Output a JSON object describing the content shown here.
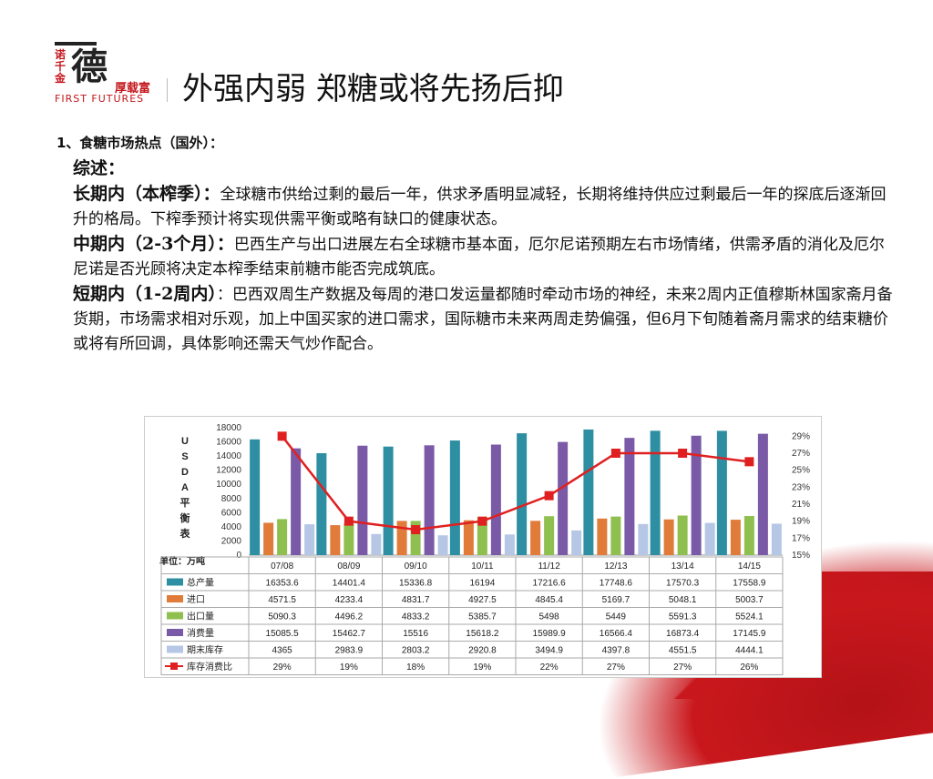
{
  "logo": {
    "side_text": "诺千金",
    "main_char": "德",
    "sub_text": "厚载富",
    "english": "FIRST FUTURES"
  },
  "title": "外强内弱 郑糖或将先扬后抑",
  "subtitle": "1、食糖市场热点（国外）：",
  "body": {
    "summary_label": "综述：",
    "long_label": "长期内（本榨季）：",
    "long_text": "全球糖市供给过剩的最后一年，供求矛盾明显减轻，长期将维持供应过剩最后一年的探底后逐渐回升的格局。下榨季预计将实现供需平衡或略有缺口的健康状态。",
    "mid_label": "中期内（2-3个月）：",
    "mid_text": "巴西生产与出口进展左右全球糖市基本面，厄尔尼诺预期左右市场情绪，供需矛盾的消化及厄尔尼诺是否光顾将决定本榨季结束前糖市能否完成筑底。",
    "short_label": "短期内（1-2周内）",
    "short_text": "：巴西双周生产数据及每周的港口发运量都随时牵动市场的神经，未来2周内正值穆斯林国家斋月备货期，市场需求相对乐观，加上中国买家的进口需求，国际糖市未来两周走势偏强，但6月下旬随着斋月需求的结束糖价或将有所回调，具体影响还需天气炒作配合。"
  },
  "chart_data": {
    "type": "bar",
    "ylabel_vertical": "USDA平衡表",
    "unit": "单位：万吨",
    "categories": [
      "07/08",
      "08/09",
      "09/10",
      "10/11",
      "11/12",
      "12/13",
      "13/14",
      "14/15"
    ],
    "ylim": [
      0,
      18000
    ],
    "yticks": [
      0,
      2000,
      4000,
      6000,
      8000,
      10000,
      12000,
      14000,
      16000,
      18000
    ],
    "y2lim": [
      15,
      30
    ],
    "y2ticks": [
      "15%",
      "17%",
      "19%",
      "21%",
      "23%",
      "25%",
      "27%",
      "29%"
    ],
    "series": [
      {
        "name": "总产量",
        "color": "#2e8fa3",
        "values": [
          16353.6,
          14401.4,
          15336.8,
          16194,
          17216.6,
          17748.6,
          17570.3,
          17558.9
        ],
        "labels": [
          "16353.6",
          "14401.4",
          "15336.8",
          "16194",
          "17216.6",
          "17748.6",
          "17570.3",
          "17558.9"
        ]
      },
      {
        "name": "进口",
        "color": "#e07b3a",
        "values": [
          4571.5,
          4233.4,
          4831.7,
          4927.5,
          4845.4,
          5169.7,
          5048.1,
          5003.7
        ],
        "labels": [
          "4571.5",
          "4233.4",
          "4831.7",
          "4927.5",
          "4845.4",
          "5169.7",
          "5048.1",
          "5003.7"
        ]
      },
      {
        "name": "出口量",
        "color": "#8fc04f",
        "values": [
          5090.3,
          4496.2,
          4833.2,
          5385.7,
          5498,
          5449,
          5591.3,
          5524.1
        ],
        "labels": [
          "5090.3",
          "4496.2",
          "4833.2",
          "5385.7",
          "5498",
          "5449",
          "5591.3",
          "5524.1"
        ]
      },
      {
        "name": "消费量",
        "color": "#7a5aa6",
        "values": [
          15085.5,
          15462.7,
          15516,
          15618.2,
          15989.9,
          16566.4,
          16873.4,
          17145.9
        ],
        "labels": [
          "15085.5",
          "15462.7",
          "15516",
          "15618.2",
          "15989.9",
          "16566.4",
          "16873.4",
          "17145.9"
        ]
      },
      {
        "name": "期末库存",
        "color": "#b6c7e6",
        "values": [
          4365,
          2983.9,
          2803.2,
          2920.8,
          3494.9,
          4397.8,
          4551.5,
          4444.1
        ],
        "labels": [
          "4365",
          "2983.9",
          "2803.2",
          "2920.8",
          "3494.9",
          "4397.8",
          "4551.5",
          "4444.1"
        ]
      },
      {
        "name": "库存消费比",
        "color": "#e02020",
        "type": "line",
        "values": [
          29,
          19,
          18,
          19,
          22,
          27,
          27,
          26
        ],
        "labels": [
          "29%",
          "19%",
          "18%",
          "19%",
          "22%",
          "27%",
          "27%",
          "26%"
        ]
      }
    ]
  }
}
